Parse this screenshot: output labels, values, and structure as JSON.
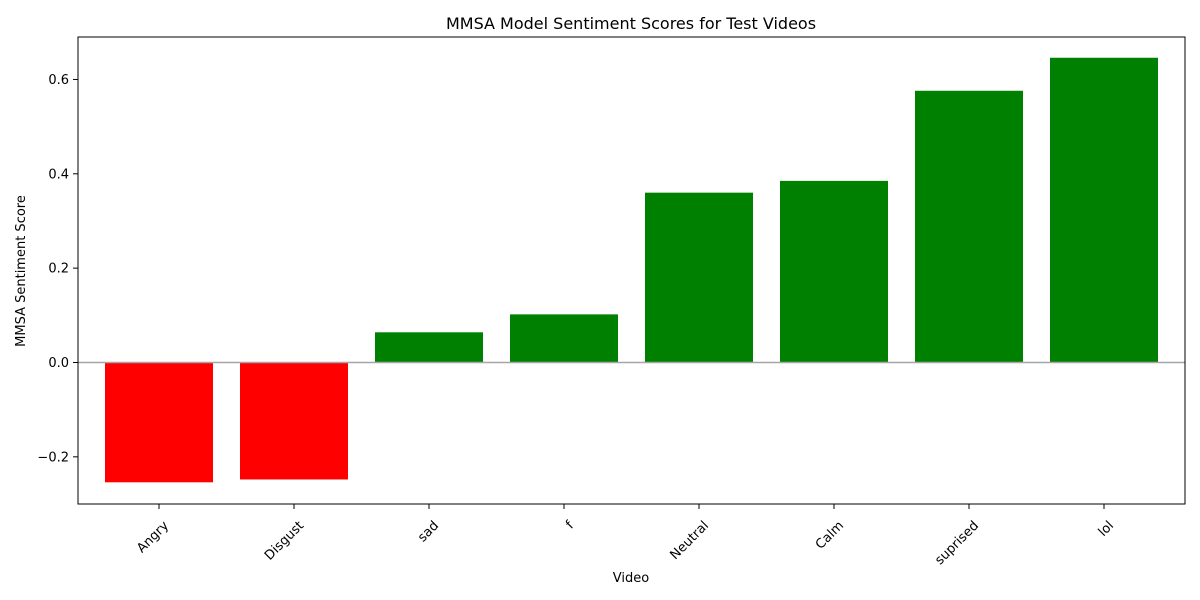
{
  "chart_data": {
    "type": "bar",
    "title": "MMSA Model Sentiment Scores for Test Videos",
    "xlabel": "Video",
    "ylabel": "MMSA Sentiment Score",
    "categories": [
      "Angry",
      "Disgust",
      "sad",
      "f",
      "Neutral",
      "Calm",
      "suprised",
      "lol"
    ],
    "values": [
      -0.254,
      -0.248,
      0.064,
      0.102,
      0.36,
      0.385,
      0.576,
      0.646
    ],
    "ylim": [
      -0.3,
      0.69
    ],
    "yticks": [
      -0.2,
      0.0,
      0.2,
      0.4,
      0.6
    ],
    "ytick_labels": [
      "−0.2",
      "0.0",
      "0.2",
      "0.4",
      "0.6"
    ],
    "zero_line": true,
    "grid": false,
    "colors": {
      "positive": "#008000",
      "negative": "#ff0000",
      "zero_line": "#a6a6a6"
    }
  }
}
